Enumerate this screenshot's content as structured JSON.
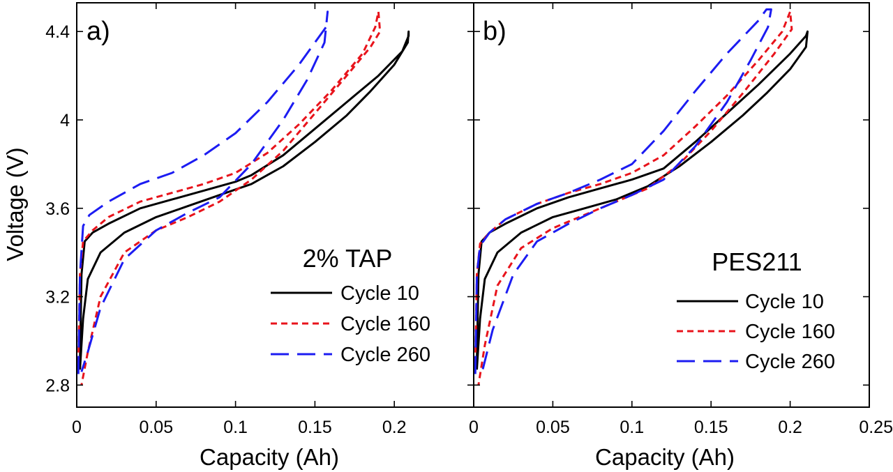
{
  "chart_data": {
    "type": "line",
    "shared": {
      "xlabel": "Capacity (Ah)",
      "ylabel": "Voltage (V)",
      "ylim": [
        2.7,
        4.53
      ],
      "yticks": [
        2.8,
        3.2,
        3.6,
        4,
        4.4
      ],
      "ytick_labels": [
        "2.8",
        "3.2",
        "3.6",
        "4",
        "4.4"
      ]
    },
    "series_styles": [
      {
        "name": "Cycle 10",
        "color": "#000000",
        "dash": "solid"
      },
      {
        "name": "Cycle 160",
        "color": "#e8131b",
        "dash": "short-dash"
      },
      {
        "name": "Cycle 260",
        "color": "#1c1cf2",
        "dash": "long-dash"
      }
    ],
    "panels": [
      {
        "label": "a)",
        "legend_title": "2% TAP",
        "xlim": [
          0,
          0.25
        ],
        "xticks": [
          0,
          0.05,
          0.1,
          0.15,
          0.2
        ],
        "xtick_labels": [
          "0",
          "0.05",
          "0.1",
          "0.15",
          "0.2"
        ],
        "series": [
          {
            "name": "Cycle 10",
            "charge": [
              [
                0.002,
                2.9
              ],
              [
                0.003,
                3.3
              ],
              [
                0.005,
                3.45
              ],
              [
                0.01,
                3.49
              ],
              [
                0.02,
                3.53
              ],
              [
                0.04,
                3.6
              ],
              [
                0.06,
                3.64
              ],
              [
                0.08,
                3.68
              ],
              [
                0.1,
                3.72
              ],
              [
                0.11,
                3.75
              ],
              [
                0.13,
                3.84
              ],
              [
                0.15,
                3.96
              ],
              [
                0.17,
                4.08
              ],
              [
                0.19,
                4.2
              ],
              [
                0.205,
                4.31
              ],
              [
                0.209,
                4.38
              ],
              [
                0.209,
                4.4
              ]
            ],
            "discharge": [
              [
                0.209,
                4.4
              ],
              [
                0.2085,
                4.35
              ],
              [
                0.2,
                4.25
              ],
              [
                0.185,
                4.13
              ],
              [
                0.17,
                4.02
              ],
              [
                0.15,
                3.9
              ],
              [
                0.13,
                3.79
              ],
              [
                0.11,
                3.71
              ],
              [
                0.09,
                3.66
              ],
              [
                0.07,
                3.61
              ],
              [
                0.05,
                3.56
              ],
              [
                0.03,
                3.49
              ],
              [
                0.015,
                3.4
              ],
              [
                0.007,
                3.28
              ],
              [
                0.004,
                3.1
              ],
              [
                0.002,
                2.87
              ]
            ]
          },
          {
            "name": "Cycle 160",
            "charge": [
              [
                0.001,
                2.9
              ],
              [
                0.002,
                3.3
              ],
              [
                0.004,
                3.45
              ],
              [
                0.01,
                3.5
              ],
              [
                0.02,
                3.56
              ],
              [
                0.04,
                3.63
              ],
              [
                0.06,
                3.67
              ],
              [
                0.08,
                3.71
              ],
              [
                0.1,
                3.76
              ],
              [
                0.12,
                3.85
              ],
              [
                0.14,
                3.98
              ],
              [
                0.16,
                4.13
              ],
              [
                0.18,
                4.3
              ],
              [
                0.188,
                4.42
              ],
              [
                0.19,
                4.49
              ]
            ],
            "discharge": [
              [
                0.19,
                4.49
              ],
              [
                0.191,
                4.4
              ],
              [
                0.185,
                4.33
              ],
              [
                0.17,
                4.2
              ],
              [
                0.15,
                4.03
              ],
              [
                0.13,
                3.86
              ],
              [
                0.11,
                3.73
              ],
              [
                0.09,
                3.63
              ],
              [
                0.07,
                3.56
              ],
              [
                0.05,
                3.5
              ],
              [
                0.03,
                3.4
              ],
              [
                0.015,
                3.2
              ],
              [
                0.007,
                2.95
              ],
              [
                0.003,
                2.8
              ]
            ]
          },
          {
            "name": "Cycle 260",
            "charge": [
              [
                0.001,
                2.85
              ],
              [
                0.002,
                3.3
              ],
              [
                0.004,
                3.52
              ],
              [
                0.008,
                3.57
              ],
              [
                0.02,
                3.63
              ],
              [
                0.04,
                3.71
              ],
              [
                0.06,
                3.76
              ],
              [
                0.08,
                3.84
              ],
              [
                0.1,
                3.94
              ],
              [
                0.12,
                4.08
              ],
              [
                0.14,
                4.25
              ],
              [
                0.157,
                4.42
              ],
              [
                0.158,
                4.49
              ]
            ],
            "discharge": [
              [
                0.158,
                4.49
              ],
              [
                0.156,
                4.35
              ],
              [
                0.145,
                4.18
              ],
              [
                0.13,
                4.0
              ],
              [
                0.11,
                3.8
              ],
              [
                0.09,
                3.65
              ],
              [
                0.07,
                3.58
              ],
              [
                0.05,
                3.5
              ],
              [
                0.03,
                3.37
              ],
              [
                0.015,
                3.15
              ],
              [
                0.007,
                2.95
              ],
              [
                0.003,
                2.86
              ]
            ]
          }
        ]
      },
      {
        "label": "b)",
        "legend_title": "PES211",
        "xlim": [
          0,
          0.25
        ],
        "xticks": [
          0,
          0.05,
          0.1,
          0.15,
          0.2,
          0.25
        ],
        "xtick_labels": [
          "0",
          "0.05",
          "0.1",
          "0.15",
          "0.2",
          "0.25"
        ],
        "series": [
          {
            "name": "Cycle 10",
            "charge": [
              [
                0.002,
                2.9
              ],
              [
                0.003,
                3.3
              ],
              [
                0.005,
                3.45
              ],
              [
                0.01,
                3.49
              ],
              [
                0.02,
                3.53
              ],
              [
                0.04,
                3.6
              ],
              [
                0.06,
                3.65
              ],
              [
                0.08,
                3.69
              ],
              [
                0.1,
                3.73
              ],
              [
                0.12,
                3.78
              ],
              [
                0.14,
                3.9
              ],
              [
                0.16,
                4.03
              ],
              [
                0.18,
                4.16
              ],
              [
                0.2,
                4.3
              ],
              [
                0.21,
                4.38
              ],
              [
                0.211,
                4.4
              ]
            ],
            "discharge": [
              [
                0.211,
                4.4
              ],
              [
                0.21,
                4.33
              ],
              [
                0.2,
                4.23
              ],
              [
                0.185,
                4.12
              ],
              [
                0.17,
                4.02
              ],
              [
                0.15,
                3.9
              ],
              [
                0.13,
                3.79
              ],
              [
                0.11,
                3.7
              ],
              [
                0.09,
                3.64
              ],
              [
                0.07,
                3.6
              ],
              [
                0.05,
                3.56
              ],
              [
                0.03,
                3.49
              ],
              [
                0.015,
                3.4
              ],
              [
                0.007,
                3.28
              ],
              [
                0.004,
                3.1
              ],
              [
                0.002,
                2.87
              ]
            ]
          },
          {
            "name": "Cycle 160",
            "charge": [
              [
                0.001,
                2.9
              ],
              [
                0.002,
                3.3
              ],
              [
                0.004,
                3.44
              ],
              [
                0.01,
                3.49
              ],
              [
                0.02,
                3.55
              ],
              [
                0.04,
                3.62
              ],
              [
                0.06,
                3.67
              ],
              [
                0.08,
                3.71
              ],
              [
                0.1,
                3.76
              ],
              [
                0.12,
                3.84
              ],
              [
                0.14,
                3.97
              ],
              [
                0.16,
                4.11
              ],
              [
                0.18,
                4.27
              ],
              [
                0.195,
                4.4
              ],
              [
                0.2,
                4.49
              ]
            ],
            "discharge": [
              [
                0.2,
                4.49
              ],
              [
                0.201,
                4.41
              ],
              [
                0.19,
                4.3
              ],
              [
                0.17,
                4.12
              ],
              [
                0.15,
                3.95
              ],
              [
                0.13,
                3.8
              ],
              [
                0.11,
                3.69
              ],
              [
                0.09,
                3.63
              ],
              [
                0.07,
                3.57
              ],
              [
                0.05,
                3.51
              ],
              [
                0.03,
                3.42
              ],
              [
                0.015,
                3.25
              ],
              [
                0.007,
                2.98
              ],
              [
                0.003,
                2.8
              ]
            ]
          },
          {
            "name": "Cycle 260",
            "charge": [
              [
                0.001,
                2.85
              ],
              [
                0.002,
                3.3
              ],
              [
                0.004,
                3.43
              ],
              [
                0.01,
                3.49
              ],
              [
                0.02,
                3.55
              ],
              [
                0.04,
                3.62
              ],
              [
                0.06,
                3.67
              ],
              [
                0.08,
                3.73
              ],
              [
                0.1,
                3.8
              ],
              [
                0.12,
                3.95
              ],
              [
                0.14,
                4.13
              ],
              [
                0.16,
                4.3
              ],
              [
                0.18,
                4.45
              ],
              [
                0.185,
                4.5
              ],
              [
                0.188,
                4.5
              ]
            ],
            "discharge": [
              [
                0.188,
                4.5
              ],
              [
                0.186,
                4.42
              ],
              [
                0.175,
                4.27
              ],
              [
                0.16,
                4.08
              ],
              [
                0.14,
                3.88
              ],
              [
                0.12,
                3.73
              ],
              [
                0.1,
                3.66
              ],
              [
                0.08,
                3.6
              ],
              [
                0.06,
                3.53
              ],
              [
                0.04,
                3.45
              ],
              [
                0.025,
                3.3
              ],
              [
                0.012,
                3.05
              ],
              [
                0.005,
                2.85
              ]
            ]
          }
        ]
      }
    ]
  }
}
